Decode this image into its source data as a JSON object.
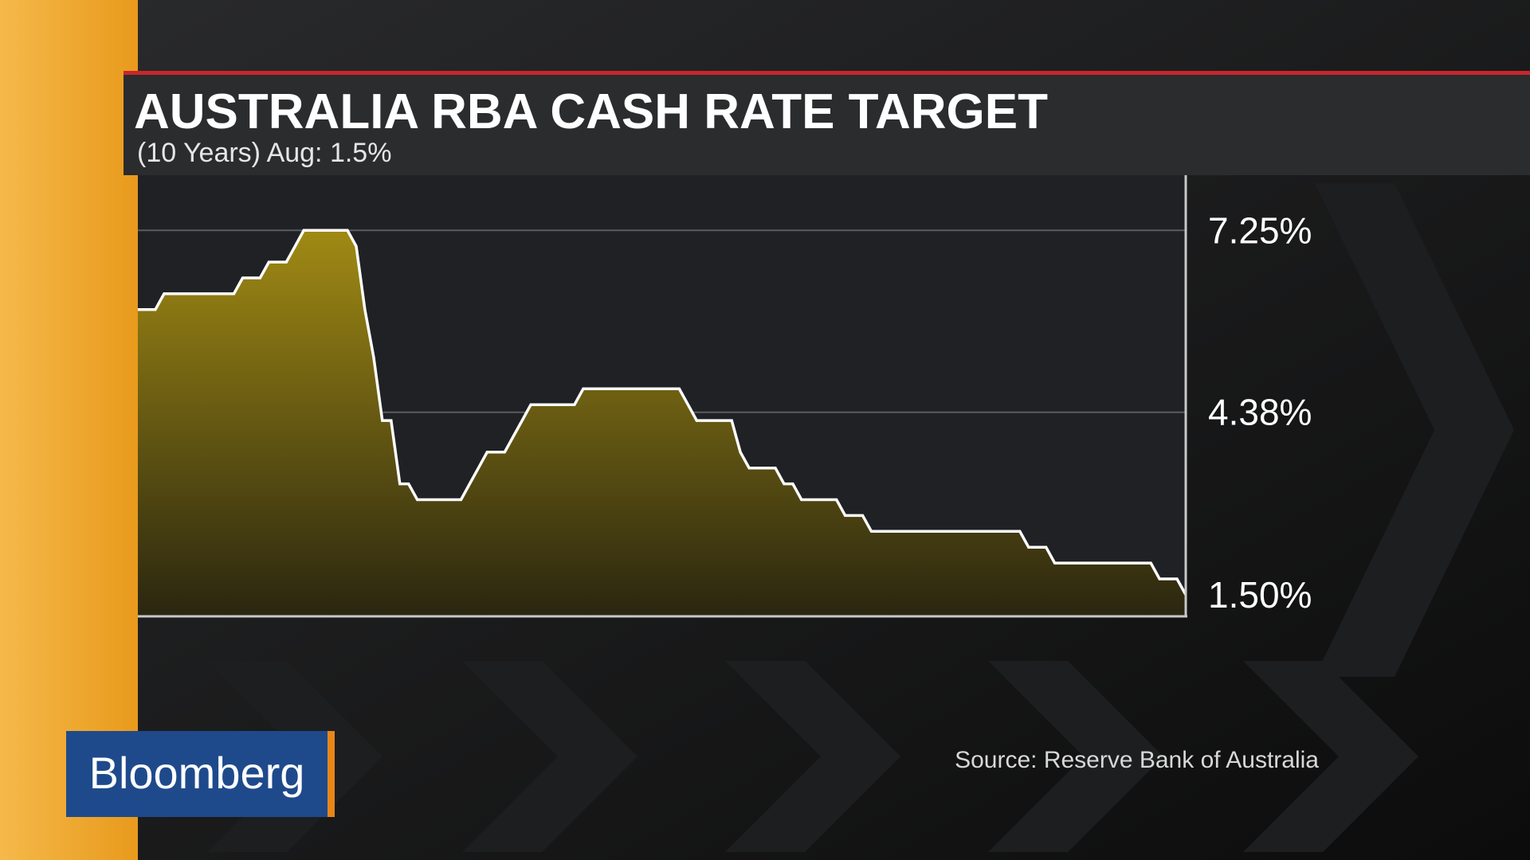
{
  "chart_data": {
    "type": "area",
    "title": "AUSTRALIA RBA CASH RATE TARGET",
    "subtitle": "(10 Years)  Aug: 1.5%",
    "source": "Source: Reserve Bank of Australia",
    "brand": "Bloomberg",
    "color": "#ffffff",
    "fill": "#9a8410",
    "grid": true,
    "values": [
      6.0,
      6.0,
      6.0,
      6.25,
      6.25,
      6.25,
      6.25,
      6.25,
      6.25,
      6.25,
      6.25,
      6.25,
      6.5,
      6.5,
      6.5,
      6.75,
      6.75,
      6.75,
      7.0,
      7.25,
      7.25,
      7.25,
      7.25,
      7.25,
      7.25,
      7.0,
      6.0,
      5.25,
      4.25,
      4.25,
      3.25,
      3.25,
      3.0,
      3.0,
      3.0,
      3.0,
      3.0,
      3.0,
      3.25,
      3.5,
      3.75,
      3.75,
      3.75,
      4.0,
      4.25,
      4.5,
      4.5,
      4.5,
      4.5,
      4.5,
      4.5,
      4.75,
      4.75,
      4.75,
      4.75,
      4.75,
      4.75,
      4.75,
      4.75,
      4.75,
      4.75,
      4.75,
      4.75,
      4.5,
      4.25,
      4.25,
      4.25,
      4.25,
      4.25,
      3.75,
      3.5,
      3.5,
      3.5,
      3.5,
      3.25,
      3.25,
      3.0,
      3.0,
      3.0,
      3.0,
      3.0,
      2.75,
      2.75,
      2.75,
      2.5,
      2.5,
      2.5,
      2.5,
      2.5,
      2.5,
      2.5,
      2.5,
      2.5,
      2.5,
      2.5,
      2.5,
      2.5,
      2.5,
      2.5,
      2.5,
      2.5,
      2.5,
      2.25,
      2.25,
      2.25,
      2.0,
      2.0,
      2.0,
      2.0,
      2.0,
      2.0,
      2.0,
      2.0,
      2.0,
      2.0,
      2.0,
      2.0,
      1.75,
      1.75,
      1.75,
      1.5
    ],
    "ylim": [
      1.16,
      8.07
    ],
    "yticks": [
      {
        "value": 1.5,
        "label": "1.50%"
      },
      {
        "value": 4.38,
        "label": "4.38%"
      },
      {
        "value": 7.25,
        "label": "7.25%"
      }
    ]
  }
}
